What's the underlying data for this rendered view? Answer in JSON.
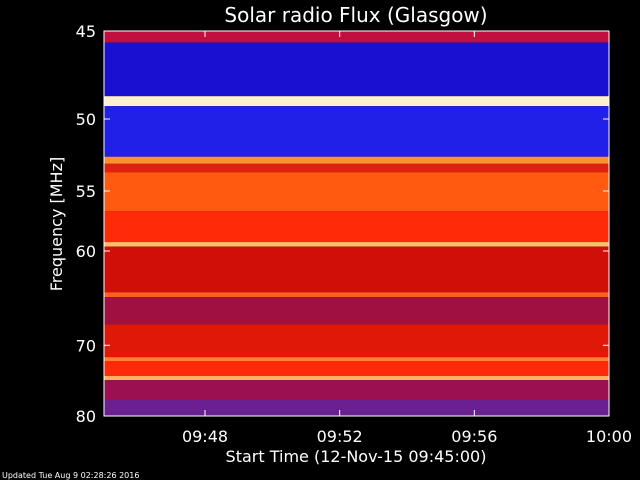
{
  "chart_data": {
    "type": "heatmap",
    "title": "Solar radio Flux (Glasgow)",
    "xlabel": "Start Time (12-Nov-15 09:45:00)",
    "ylabel": "Frequency [MHz]",
    "x_unit": "time of day",
    "x_range": [
      "09:45",
      "10:00"
    ],
    "x_ticks": [
      "09:48",
      "09:52",
      "09:56",
      "10:00"
    ],
    "y_unit": "MHz",
    "y_range": [
      45,
      80
    ],
    "y_ticks": [
      45,
      50,
      55,
      60,
      70,
      80
    ],
    "y_scale": "reciprocal",
    "grid": false,
    "colormap": [
      "#000000",
      "#1a00a8",
      "#3a40ff",
      "#8c1aa0",
      "#c00010",
      "#ff1a00",
      "#ff7a10",
      "#ffd080",
      "#ffffff"
    ],
    "bands": [
      {
        "from_mhz": 45.0,
        "to_mhz": 45.6,
        "color": "#c01040"
      },
      {
        "from_mhz": 45.6,
        "to_mhz": 48.6,
        "color": "#1a10d0"
      },
      {
        "from_mhz": 48.6,
        "to_mhz": 49.2,
        "color": "#fff0d0"
      },
      {
        "from_mhz": 49.2,
        "to_mhz": 52.5,
        "color": "#2020e8"
      },
      {
        "from_mhz": 52.5,
        "to_mhz": 53.0,
        "color": "#ff9030"
      },
      {
        "from_mhz": 53.0,
        "to_mhz": 53.6,
        "color": "#e02010"
      },
      {
        "from_mhz": 53.6,
        "to_mhz": 56.6,
        "color": "#ff5a10"
      },
      {
        "from_mhz": 56.6,
        "to_mhz": 59.2,
        "color": "#ff2a08"
      },
      {
        "from_mhz": 59.2,
        "to_mhz": 59.6,
        "color": "#ffc070"
      },
      {
        "from_mhz": 59.6,
        "to_mhz": 64.0,
        "color": "#d01008"
      },
      {
        "from_mhz": 64.0,
        "to_mhz": 64.5,
        "color": "#ff6020"
      },
      {
        "from_mhz": 64.5,
        "to_mhz": 67.5,
        "color": "#a01040"
      },
      {
        "from_mhz": 67.5,
        "to_mhz": 71.5,
        "color": "#e01808"
      },
      {
        "from_mhz": 71.5,
        "to_mhz": 72.0,
        "color": "#ff8030"
      },
      {
        "from_mhz": 72.0,
        "to_mhz": 74.0,
        "color": "#ff2a0a"
      },
      {
        "from_mhz": 74.0,
        "to_mhz": 74.6,
        "color": "#ffb060"
      },
      {
        "from_mhz": 74.6,
        "to_mhz": 77.5,
        "color": "#9a1050"
      },
      {
        "from_mhz": 77.5,
        "to_mhz": 80.0,
        "color": "#6a2090"
      }
    ]
  },
  "footer": "Updated Tue Aug  9 02:28:26 2016"
}
